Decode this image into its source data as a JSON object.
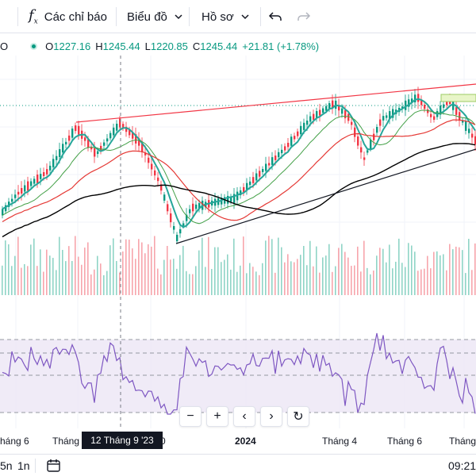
{
  "toolbar": {
    "indicators_label": "Các chỉ báo",
    "chart_type_label": "Biểu đồ",
    "profile_label": "Hồ sơ"
  },
  "legend": {
    "symbol_initial": "O",
    "open_key": "O",
    "open": "1227.16",
    "high_key": "H",
    "high": "1245.44",
    "low_key": "L",
    "low": "1220.85",
    "close_key": "C",
    "close": "1245.44",
    "change": "+21.81 (+1.78%)"
  },
  "time_axis": {
    "ticks": [
      "háng 6",
      "Tháng",
      "0",
      "2024",
      "Tháng 4",
      "Tháng 6",
      "Tháng"
    ],
    "crosshair_date": "12 Tháng 9 '23"
  },
  "nav_buttons": [
    "−",
    "+",
    "‹",
    "›",
    "↻"
  ],
  "bottom_bar": {
    "range_a": "5n",
    "range_b": "1n",
    "clock": "09:21"
  },
  "colors": {
    "up": "#089981",
    "down": "#f23645",
    "rsi": "#7e57c2",
    "ema_fast": "#26a69a",
    "ma_mid": "#43a047",
    "ma_slow": "#e53935",
    "ma_long": "#000000"
  },
  "icons": [
    "fx-icon",
    "undo-icon",
    "redo-icon",
    "calendar-range-icon",
    "reset-icon"
  ]
}
